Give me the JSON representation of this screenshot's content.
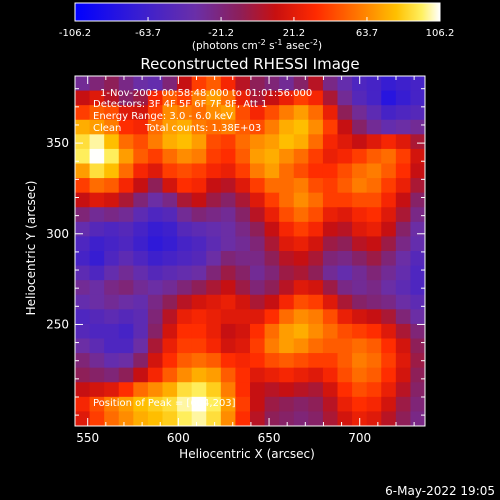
{
  "colorbar": {
    "ticks": [
      "-106.2",
      "-63.7",
      "-21.2",
      "21.2",
      "63.7",
      "106.2"
    ],
    "range": [
      -106.2,
      106.2
    ],
    "unit_label": {
      "pre": "(photons cm",
      "exp1": "-2",
      "mid1": " s",
      "exp2": "-1",
      "mid2": " asec",
      "exp3": "-2",
      "post": ")"
    }
  },
  "title": "Reconstructed RHESSI Image",
  "annotations": {
    "line1": "1-Nov-2003 00:58:48.000 to 01:01:56.000",
    "line2": "Detectors: 3F 4F 5F 6F 7F 8F, Att 1",
    "line3": "Energy Range: 3.0 - 6.0 keV",
    "line4_a": "Clean",
    "line4_b": "Total counts: 1.38E+03",
    "peak": "Position of Peak = [604,203]"
  },
  "footer_date": "6-May-2022 19:05",
  "chart_data": {
    "type": "heatmap",
    "title": "Reconstructed RHESSI Image",
    "xlabel": "Heliocentric X (arcsec)",
    "ylabel": "Heliocentric Y (arcsec)",
    "xlim": [
      543,
      736
    ],
    "ylim": [
      194,
      387
    ],
    "x_ticks": [
      550,
      600,
      650,
      700
    ],
    "y_ticks": [
      250,
      300,
      350
    ],
    "grid": false,
    "zlim": [
      -106.2,
      106.2
    ],
    "grid_nx": 24,
    "grid_ny": 24,
    "values": [
      [
        -30,
        -20,
        -10,
        -25,
        -35,
        -40,
        -20,
        10,
        40,
        50,
        30,
        5,
        -10,
        -20,
        -30,
        -15,
        5,
        -25,
        -40,
        -55,
        -60,
        -70,
        -65,
        -60
      ],
      [
        10,
        20,
        5,
        -15,
        -5,
        30,
        50,
        40,
        60,
        70,
        55,
        25,
        0,
        10,
        25,
        40,
        30,
        0,
        -30,
        -50,
        -60,
        -80,
        -70,
        -60
      ],
      [
        40,
        50,
        45,
        20,
        15,
        40,
        65,
        60,
        55,
        65,
        70,
        45,
        30,
        45,
        60,
        70,
        55,
        25,
        -10,
        -30,
        -45,
        -60,
        -55,
        -50
      ],
      [
        75,
        70,
        60,
        35,
        30,
        55,
        70,
        75,
        60,
        55,
        60,
        50,
        45,
        60,
        75,
        80,
        65,
        40,
        10,
        -15,
        -30,
        -40,
        -35,
        -30
      ],
      [
        90,
        100,
        80,
        55,
        45,
        60,
        75,
        80,
        70,
        45,
        40,
        55,
        65,
        70,
        80,
        75,
        55,
        30,
        20,
        10,
        20,
        30,
        20,
        0
      ],
      [
        95,
        106,
        95,
        70,
        50,
        40,
        55,
        65,
        60,
        40,
        35,
        50,
        70,
        75,
        65,
        55,
        40,
        25,
        30,
        40,
        50,
        55,
        40,
        15
      ],
      [
        70,
        90,
        80,
        55,
        30,
        20,
        40,
        45,
        40,
        30,
        25,
        40,
        60,
        70,
        55,
        45,
        35,
        35,
        45,
        55,
        60,
        50,
        35,
        10
      ],
      [
        40,
        55,
        50,
        30,
        10,
        -10,
        15,
        35,
        30,
        10,
        5,
        20,
        40,
        55,
        55,
        60,
        45,
        40,
        50,
        60,
        55,
        40,
        25,
        0
      ],
      [
        10,
        20,
        15,
        0,
        -20,
        -35,
        -25,
        0,
        10,
        -5,
        -15,
        0,
        20,
        40,
        55,
        65,
        55,
        40,
        40,
        45,
        45,
        30,
        10,
        -15
      ],
      [
        -20,
        -30,
        -25,
        -30,
        -45,
        -55,
        -50,
        -30,
        -20,
        -25,
        -30,
        -15,
        5,
        25,
        45,
        55,
        45,
        25,
        20,
        30,
        35,
        20,
        0,
        -25
      ],
      [
        -40,
        -50,
        -55,
        -50,
        -60,
        -70,
        -65,
        -50,
        -45,
        -40,
        -35,
        -25,
        -10,
        10,
        30,
        40,
        30,
        10,
        5,
        20,
        25,
        10,
        -15,
        -35
      ],
      [
        -55,
        -65,
        -60,
        -55,
        -65,
        -75,
        -70,
        -60,
        -55,
        -45,
        -35,
        -30,
        -20,
        0,
        20,
        25,
        15,
        -5,
        -10,
        5,
        10,
        -5,
        -25,
        -40
      ],
      [
        -60,
        -70,
        -55,
        -45,
        -55,
        -65,
        -60,
        -55,
        -50,
        -35,
        -20,
        -25,
        -25,
        -10,
        5,
        10,
        0,
        -20,
        -25,
        -15,
        -5,
        -20,
        -35,
        -50
      ],
      [
        -45,
        -55,
        -40,
        -30,
        -40,
        -50,
        -45,
        -40,
        -35,
        -20,
        -5,
        -15,
        -30,
        -20,
        -5,
        0,
        -10,
        -30,
        -40,
        -30,
        -20,
        -30,
        -40,
        -55
      ],
      [
        -30,
        -35,
        -25,
        -20,
        -30,
        -35,
        -30,
        -20,
        -10,
        0,
        10,
        -5,
        -20,
        -10,
        5,
        20,
        15,
        -5,
        -25,
        -30,
        -25,
        -35,
        -45,
        -55
      ],
      [
        -40,
        -35,
        -30,
        -35,
        -40,
        -25,
        -10,
        5,
        15,
        20,
        25,
        15,
        0,
        10,
        30,
        45,
        40,
        20,
        0,
        -15,
        -20,
        -25,
        -35,
        -45
      ],
      [
        -55,
        -50,
        -45,
        -50,
        -45,
        -20,
        5,
        25,
        30,
        25,
        20,
        20,
        20,
        35,
        55,
        65,
        60,
        45,
        25,
        15,
        10,
        0,
        -20,
        -35
      ],
      [
        -50,
        -55,
        -55,
        -60,
        -45,
        -15,
        15,
        35,
        35,
        25,
        10,
        15,
        35,
        55,
        70,
        75,
        65,
        55,
        45,
        40,
        35,
        20,
        0,
        -20
      ],
      [
        -35,
        -45,
        -55,
        -55,
        -35,
        0,
        25,
        40,
        40,
        30,
        15,
        20,
        40,
        60,
        70,
        65,
        55,
        50,
        50,
        55,
        50,
        35,
        15,
        -10
      ],
      [
        -20,
        -30,
        -40,
        -35,
        -15,
        15,
        35,
        50,
        55,
        50,
        35,
        30,
        35,
        45,
        50,
        45,
        40,
        40,
        50,
        60,
        55,
        40,
        20,
        -5
      ],
      [
        -10,
        -15,
        -20,
        -10,
        10,
        30,
        50,
        65,
        75,
        70,
        50,
        35,
        20,
        25,
        30,
        25,
        20,
        30,
        45,
        55,
        50,
        35,
        15,
        -10
      ],
      [
        10,
        15,
        20,
        35,
        55,
        65,
        75,
        90,
        95,
        85,
        60,
        35,
        10,
        5,
        10,
        5,
        0,
        15,
        35,
        45,
        40,
        25,
        5,
        -15
      ],
      [
        30,
        45,
        60,
        70,
        80,
        85,
        90,
        100,
        106,
        95,
        70,
        40,
        10,
        -5,
        -10,
        -15,
        -10,
        5,
        25,
        35,
        30,
        15,
        -5,
        -20
      ],
      [
        20,
        40,
        55,
        65,
        75,
        80,
        85,
        95,
        100,
        90,
        65,
        35,
        5,
        -10,
        -15,
        -20,
        -15,
        0,
        15,
        25,
        20,
        5,
        -10,
        -25
      ]
    ]
  }
}
